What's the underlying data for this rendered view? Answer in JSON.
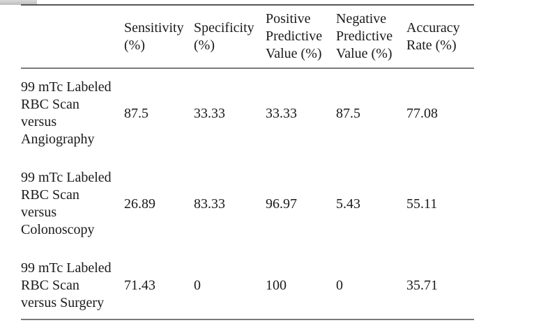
{
  "colors": {
    "background": "#ffffff",
    "text": "#1a1a1a",
    "rule_top": "#565656",
    "rule": "#7a7a7a",
    "corner_fragment_light": "#d9d9d9",
    "corner_fragment_dark": "#bdbdbd"
  },
  "table": {
    "header": [
      {
        "lines": []
      },
      {
        "lines": [
          "Sensitivity",
          "(%)"
        ]
      },
      {
        "lines": [
          "Specificity",
          "(%)"
        ]
      },
      {
        "lines": [
          "Positive",
          "Predictive",
          "Value (%)"
        ]
      },
      {
        "lines": [
          "Negative",
          "Predictive",
          "Value (%)"
        ]
      },
      {
        "lines": [
          "Accuracy",
          "Rate (%)"
        ]
      }
    ],
    "rows": [
      {
        "label_lines": [
          "99 mTc Labeled",
          "RBC Scan",
          "versus",
          "Angiography"
        ],
        "values": [
          "87.5",
          "33.33",
          "33.33",
          "87.5",
          "77.08"
        ]
      },
      {
        "label_lines": [
          "99 mTc Labeled",
          "RBC Scan",
          "versus",
          "Colonoscopy"
        ],
        "values": [
          "26.89",
          "83.33",
          "96.97",
          "5.43",
          "55.11"
        ]
      },
      {
        "label_lines": [
          "99 mTc Labeled",
          "RBC Scan",
          "versus Surgery"
        ],
        "values": [
          "71.43",
          "0",
          "100",
          "0",
          "35.71"
        ]
      }
    ]
  }
}
